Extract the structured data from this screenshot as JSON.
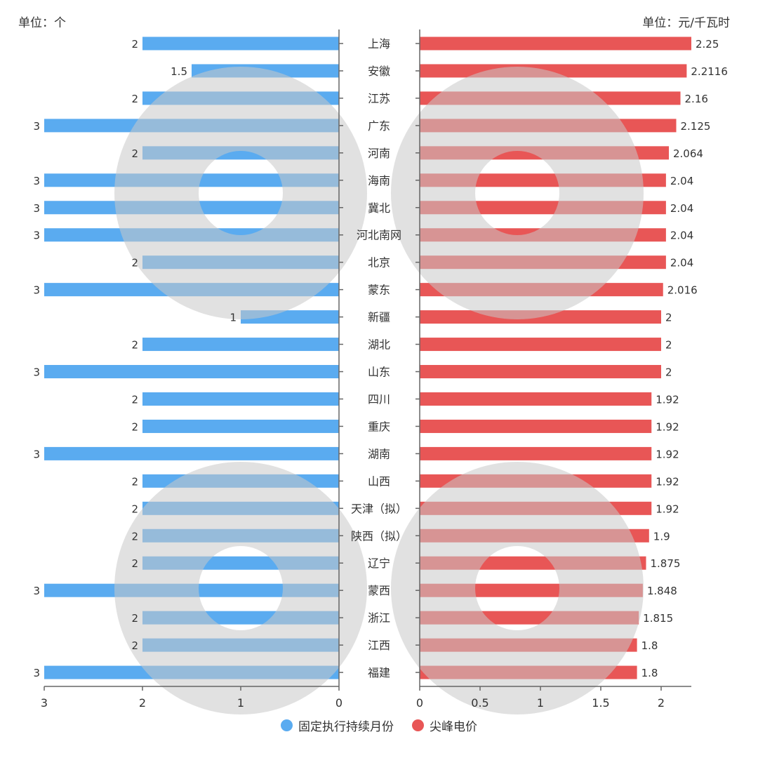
{
  "chart_data": [
    {
      "type": "bar",
      "orientation": "horizontal",
      "direction": "right-to-left",
      "unit_label": "单位：个",
      "series_name": "固定执行持续月份",
      "color": "#5aabf0",
      "categories": [
        "上海",
        "安徽",
        "江苏",
        "广东",
        "河南",
        "海南",
        "冀北",
        "河北南网",
        "北京",
        "蒙东",
        "新疆",
        "湖北",
        "山东",
        "四川",
        "重庆",
        "湖南",
        "山西",
        "天津（拟）",
        "陕西（拟）",
        "辽宁",
        "蒙西",
        "浙江",
        "江西",
        "福建"
      ],
      "values": [
        2,
        1.5,
        2,
        3,
        2,
        3,
        3,
        3,
        2,
        3,
        1,
        2,
        3,
        2,
        2,
        3,
        2,
        2,
        2,
        2,
        3,
        2,
        2,
        3
      ],
      "value_labels": [
        "2",
        "1.5",
        "2",
        "3",
        "2",
        "3",
        "3",
        "3",
        "2",
        "3",
        "1",
        "2",
        "3",
        "2",
        "2",
        "3",
        "2",
        "2",
        "2",
        "2",
        "3",
        "2",
        "2",
        "3"
      ],
      "xlim": [
        0,
        3
      ],
      "ticks": [
        "3",
        "2",
        "1",
        "0"
      ],
      "tick_values": [
        3,
        2,
        1,
        0
      ]
    },
    {
      "type": "bar",
      "orientation": "horizontal",
      "direction": "left-to-right",
      "unit_label": "单位：元/千瓦时",
      "series_name": "尖峰电价",
      "color": "#e85656",
      "categories": [
        "上海",
        "安徽",
        "江苏",
        "广东",
        "河南",
        "海南",
        "冀北",
        "河北南网",
        "北京",
        "蒙东",
        "新疆",
        "湖北",
        "山东",
        "四川",
        "重庆",
        "湖南",
        "山西",
        "天津（拟）",
        "陕西（拟）",
        "辽宁",
        "蒙西",
        "浙江",
        "江西",
        "福建"
      ],
      "values": [
        2.25,
        2.2116,
        2.16,
        2.125,
        2.064,
        2.04,
        2.04,
        2.04,
        2.04,
        2.016,
        2,
        2,
        2,
        1.92,
        1.92,
        1.92,
        1.92,
        1.92,
        1.9,
        1.875,
        1.848,
        1.815,
        1.8,
        1.8
      ],
      "value_labels": [
        "2.25",
        "2.2116",
        "2.16",
        "2.125",
        "2.064",
        "2.04",
        "2.04",
        "2.04",
        "2.04",
        "2.016",
        "2",
        "2",
        "2",
        "1.92",
        "1.92",
        "1.92",
        "1.92",
        "1.92",
        "1.9",
        "1.875",
        "1.848",
        "1.815",
        "1.8",
        "1.8"
      ],
      "xlim": [
        0,
        2.25
      ],
      "ticks": [
        "0",
        "0.5",
        "1",
        "1.5",
        "2"
      ],
      "tick_values": [
        0,
        0.5,
        1,
        1.5,
        2
      ]
    }
  ],
  "header": {
    "left_unit": "单位：个",
    "right_unit": "单位：元/千瓦时"
  },
  "legend": [
    {
      "label": "固定执行持续月份",
      "color": "#5aabf0"
    },
    {
      "label": "尖峰电价",
      "color": "#e85656"
    }
  ],
  "colors": {
    "watermark": "#c8c8c8",
    "axis": "#666666",
    "text": "#333333"
  }
}
